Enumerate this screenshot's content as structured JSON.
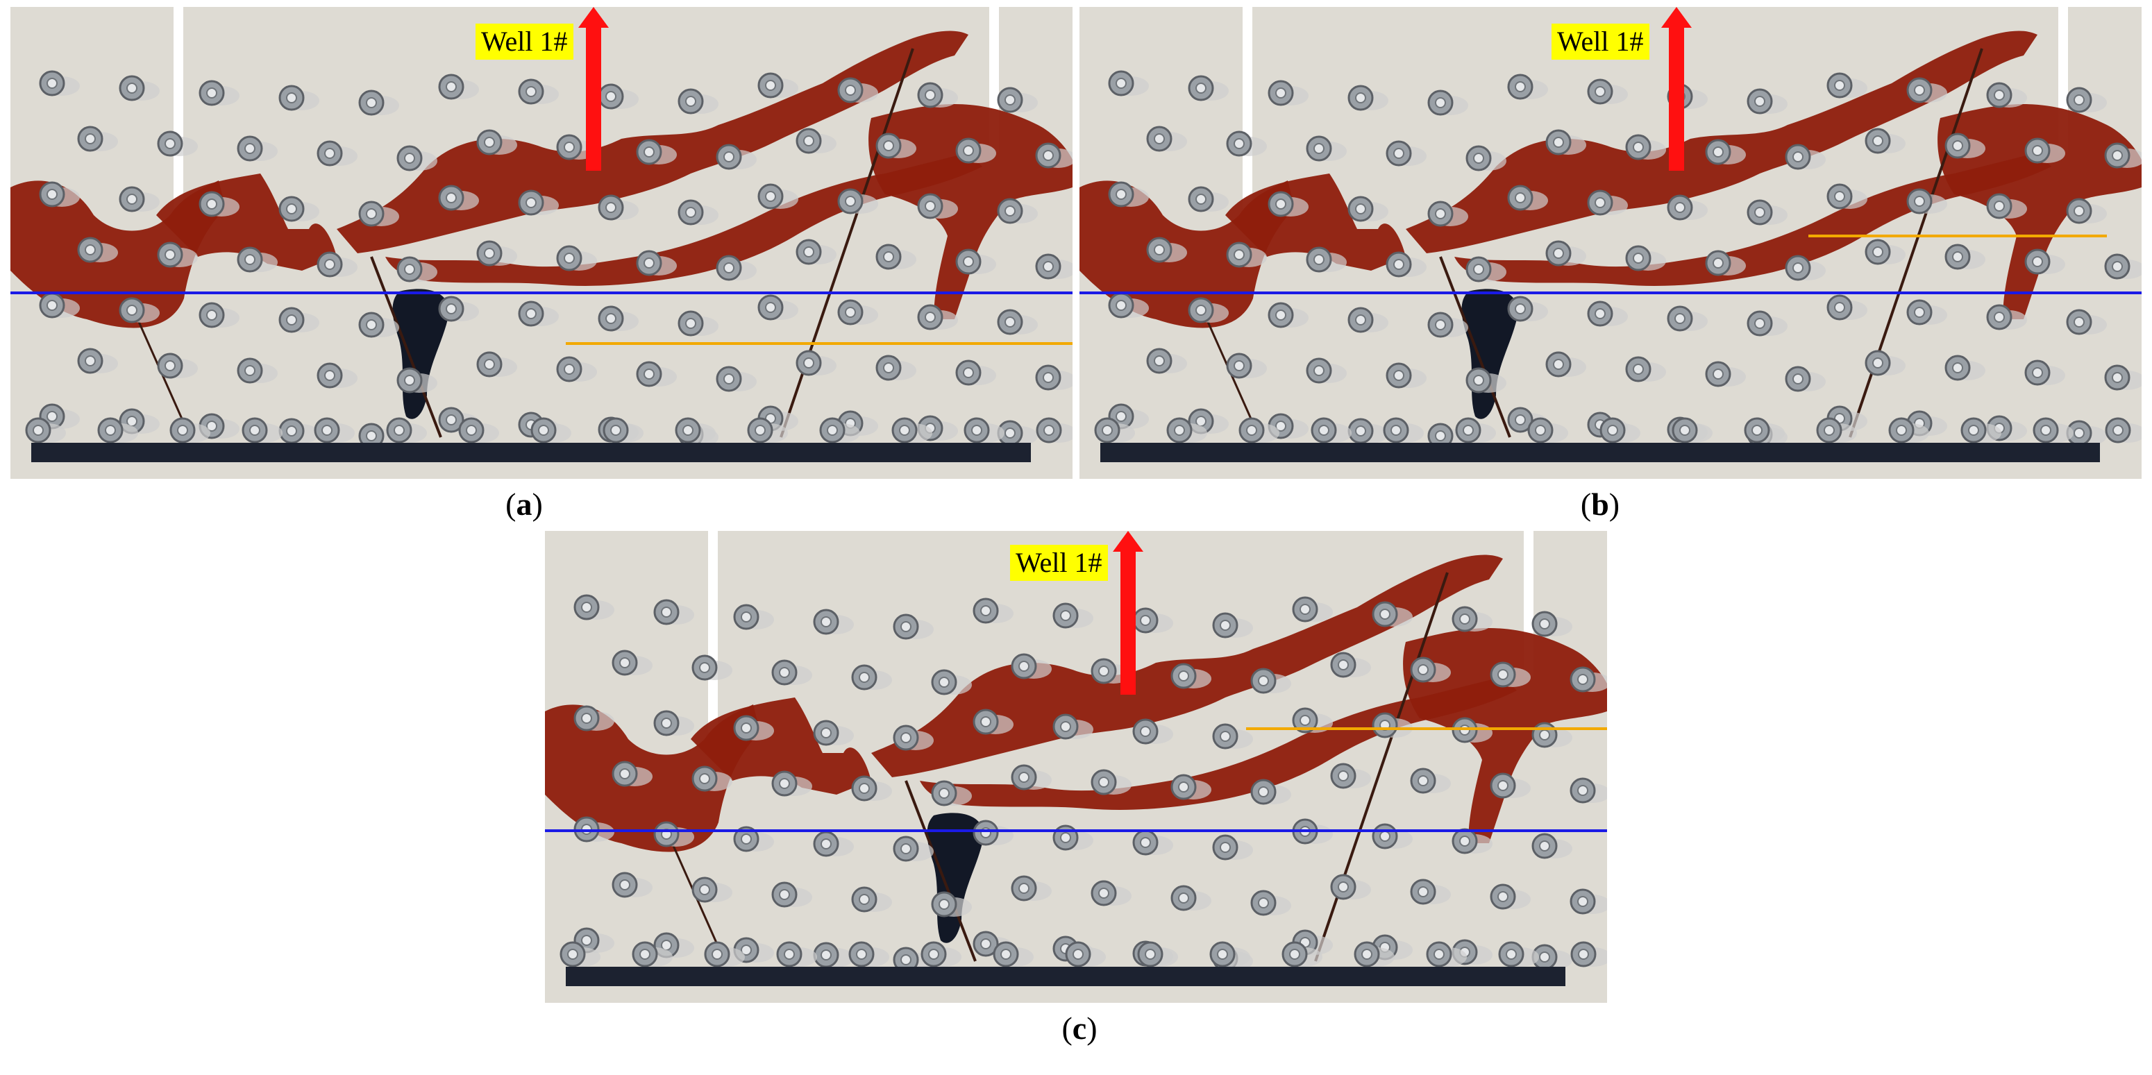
{
  "figure": {
    "panels": [
      {
        "id": "a",
        "caption_letter": "a",
        "well_label": "Well 1#"
      },
      {
        "id": "b",
        "caption_letter": "b",
        "well_label": "Well 1#"
      },
      {
        "id": "c",
        "caption_letter": "c",
        "well_label": "Well 1#"
      }
    ]
  },
  "colors": {
    "oil": "#8e1e0c",
    "water_dark": "#121826",
    "blue_line": "#1a1ae6",
    "orange_line": "#f2a900",
    "arrow": "#ff1010",
    "label_bg": "#ffff00",
    "bottom_bar": "#1c2230"
  }
}
